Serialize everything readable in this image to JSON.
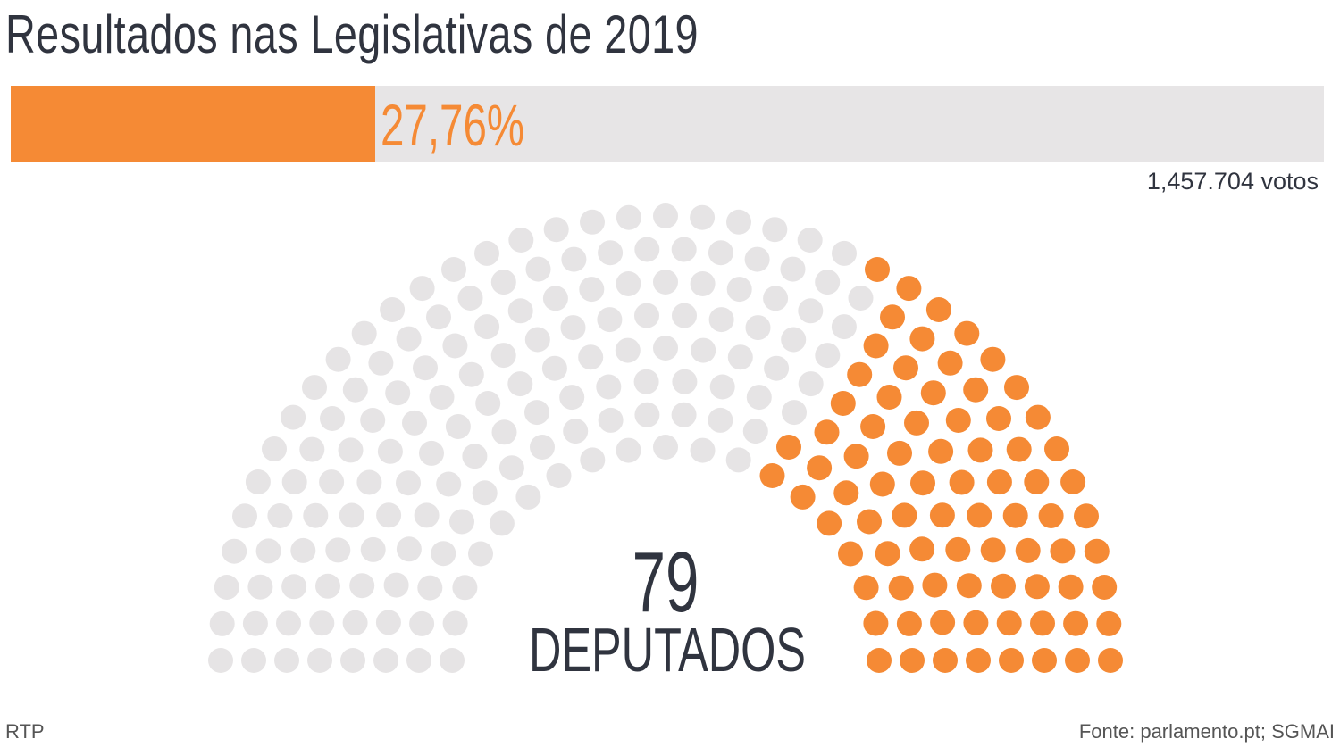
{
  "title": "Resultados nas Legislativas de 2019",
  "percent_label": "27,76%",
  "votes_label": "1,457.704 votos",
  "seats_label": "79",
  "seats_caption": "DEPUTADOS",
  "source_left": "RTP",
  "source_right": "Fonte: parlamento.pt; SGMAI",
  "colors": {
    "party": "#f58a35",
    "other": "#e6e4e5",
    "text": "#30343f"
  },
  "chart_data": {
    "type": "parliament",
    "title": "Resultados nas Legislativas de 2019",
    "vote_share_percent": 27.76,
    "votes": 1457704,
    "total_seats": 230,
    "party_seats": 79,
    "rows": 8
  }
}
